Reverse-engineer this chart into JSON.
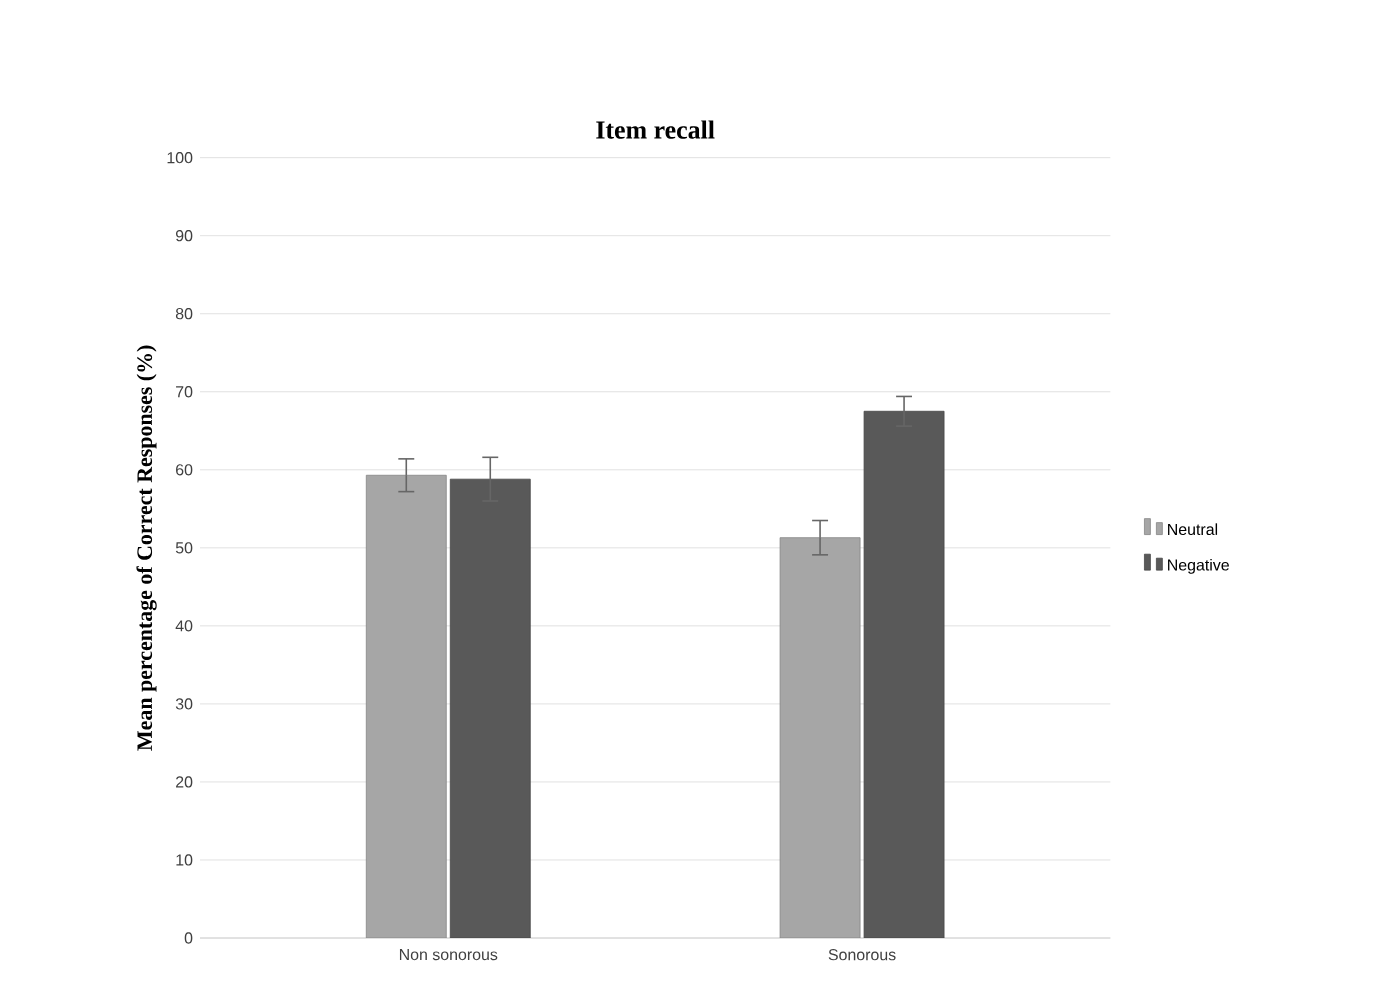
{
  "chart_data": {
    "type": "bar",
    "title": "Item recall",
    "ylabel": "Mean percentage of Correct Responses (%)",
    "categories": [
      "Non sonorous",
      "Sonorous"
    ],
    "series": [
      {
        "name": "Neutral",
        "color": "#a6a6a6",
        "values": [
          59.3,
          51.3
        ],
        "errors": [
          2.1,
          2.2
        ]
      },
      {
        "name": "Negative",
        "color": "#595959",
        "values": [
          58.8,
          67.5
        ],
        "errors": [
          2.8,
          1.9
        ]
      }
    ],
    "ylim": [
      0,
      100
    ],
    "yticks": [
      0,
      10,
      20,
      30,
      40,
      50,
      60,
      70,
      80,
      90,
      100
    ],
    "grid": "y",
    "legend": "right"
  }
}
